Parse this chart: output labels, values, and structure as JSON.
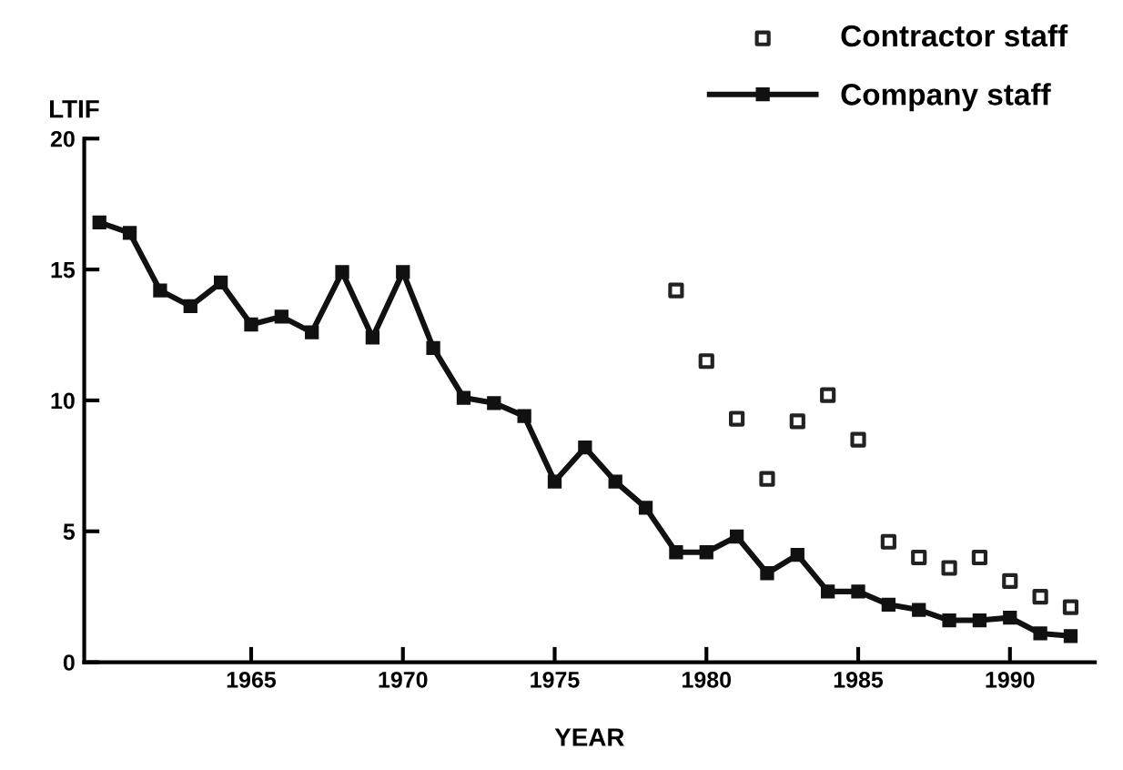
{
  "chart_data": {
    "type": "line",
    "xlabel": "YEAR",
    "ylabel": "LTIF",
    "x": [
      1960,
      1961,
      1962,
      1963,
      1964,
      1965,
      1966,
      1967,
      1968,
      1969,
      1970,
      1971,
      1972,
      1973,
      1974,
      1975,
      1976,
      1977,
      1978,
      1979,
      1980,
      1981,
      1982,
      1983,
      1984,
      1985,
      1986,
      1987,
      1988,
      1989,
      1990,
      1991,
      1992
    ],
    "series": [
      {
        "name": "Contractor staff",
        "type": "scatter",
        "marker": "square",
        "color": "#222222",
        "x": [
          1979,
          1980,
          1981,
          1982,
          1983,
          1984,
          1985,
          1986,
          1987,
          1988,
          1989,
          1990,
          1991,
          1992
        ],
        "values": [
          14.2,
          11.5,
          9.3,
          7.0,
          9.2,
          10.2,
          8.5,
          4.6,
          4.0,
          3.6,
          4.0,
          3.1,
          2.5,
          2.1
        ]
      },
      {
        "name": "Company staff",
        "marker": "square",
        "line_style": "solid",
        "color": "#111111",
        "values": [
          16.8,
          16.4,
          14.2,
          13.6,
          14.5,
          12.9,
          13.2,
          12.6,
          14.9,
          12.4,
          14.9,
          12.0,
          10.1,
          9.9,
          9.4,
          6.9,
          8.2,
          6.9,
          5.9,
          4.2,
          4.2,
          4.8,
          3.4,
          4.1,
          2.7,
          2.7,
          2.2,
          2.0,
          1.6,
          1.6,
          1.7,
          1.1,
          1.0
        ]
      }
    ],
    "xlim": [
      1959.5,
      1992.8
    ],
    "xticks": [
      1965,
      1970,
      1975,
      1980,
      1985,
      1990
    ],
    "ylim": [
      0,
      20
    ],
    "yticks": [
      0,
      5,
      10,
      15,
      20
    ],
    "grid": false,
    "legend": "top right"
  }
}
